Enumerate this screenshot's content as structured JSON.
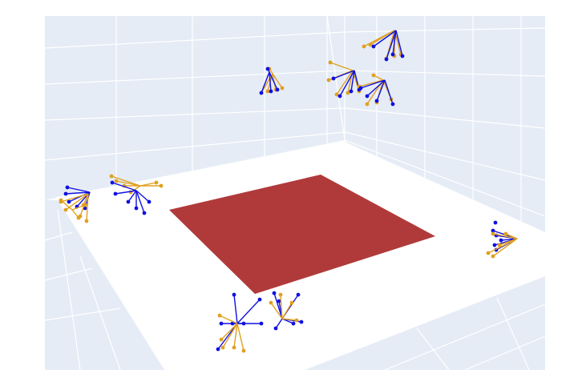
{
  "colors": {
    "background": "#ffffff",
    "wall": "#e5ecf6",
    "grid": "#ffffff",
    "floor": "#ffffff",
    "target_plane": "#b03a3a",
    "camera_estimated": "#1010e0",
    "camera_reference": "#e0a020"
  },
  "scene": {
    "type": "3d-scatter",
    "objects": [
      "wall-left",
      "wall-back",
      "floor",
      "target-plane",
      "camera-rigs"
    ],
    "camera_rig_groups": 6,
    "series": [
      {
        "key": "estimated",
        "color_key": "camera_estimated"
      },
      {
        "key": "reference",
        "color_key": "camera_reference"
      }
    ]
  }
}
